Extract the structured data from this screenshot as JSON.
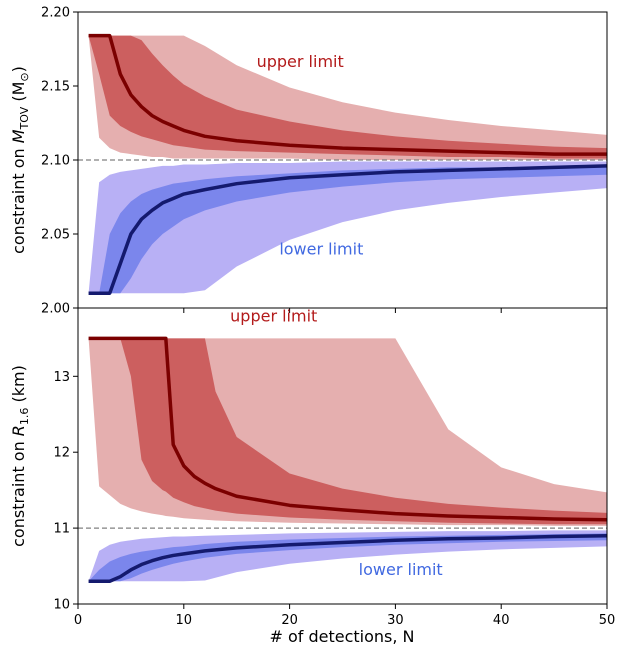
{
  "figure": {
    "xlabel": "#  of  detections,  N",
    "shared_x": true
  },
  "colors": {
    "upper_line": "#7b0000",
    "upper_band_outer": "#e5afaf",
    "upper_band_inner": "#cc5f5f",
    "lower_line": "#141a6e",
    "lower_band_outer": "#b8b0f5",
    "lower_band_inner": "#7b86ec",
    "upper_text": "#b31b1b",
    "lower_text": "#4169e1",
    "reference_line": "#808080"
  },
  "chart_data": [
    {
      "type": "area",
      "panel": "top",
      "ylabel_prefix": "constraint on ",
      "ylabel_symbol": "M",
      "ylabel_sub": "TOV",
      "ylabel_unit": "(M",
      "ylabel_unit_sub": "⊙",
      "ylabel_unit_close": ")",
      "xlim": [
        0,
        50
      ],
      "ylim": [
        2.0,
        2.2
      ],
      "xticks": [
        0,
        10,
        20,
        30,
        40,
        50
      ],
      "xticklabels": [
        "0",
        "10",
        "20",
        "30",
        "40",
        "50"
      ],
      "yticks": [
        2.0,
        2.05,
        2.1,
        2.15,
        2.2
      ],
      "yticklabels": [
        "2.00",
        "2.05",
        "2.10",
        "2.15",
        "2.20"
      ],
      "reference_y": 2.1,
      "annotations": [
        {
          "text": "upper  limit",
          "x": 21,
          "y": 2.163,
          "color": "upper_text"
        },
        {
          "text": "lower  limit",
          "x": 23,
          "y": 2.036,
          "color": "lower_text"
        }
      ],
      "series": [
        {
          "name": "upper limit",
          "color": "upper_line",
          "x": [
            1,
            2,
            3,
            4,
            5,
            6,
            7,
            8,
            9,
            10,
            12,
            15,
            20,
            25,
            30,
            35,
            40,
            45,
            50
          ],
          "median": [
            2.184,
            2.184,
            2.184,
            2.158,
            2.144,
            2.136,
            2.13,
            2.126,
            2.123,
            2.12,
            2.116,
            2.113,
            2.11,
            2.108,
            2.107,
            2.106,
            2.105,
            2.104,
            2.104
          ],
          "inner_lo": [
            2.184,
            2.158,
            2.13,
            2.123,
            2.119,
            2.116,
            2.114,
            2.112,
            2.11,
            2.109,
            2.107,
            2.106,
            2.105,
            2.104,
            2.103,
            2.102,
            2.102,
            2.101,
            2.101
          ],
          "inner_hi": [
            2.184,
            2.184,
            2.184,
            2.184,
            2.184,
            2.181,
            2.172,
            2.164,
            2.157,
            2.151,
            2.143,
            2.134,
            2.126,
            2.12,
            2.116,
            2.113,
            2.111,
            2.109,
            2.108
          ],
          "outer_lo": [
            2.184,
            2.115,
            2.108,
            2.105,
            2.104,
            2.103,
            2.102,
            2.102,
            2.101,
            2.101,
            2.101,
            2.101,
            2.101,
            2.1,
            2.1,
            2.1,
            2.1,
            2.1,
            2.1
          ],
          "outer_hi": [
            2.184,
            2.184,
            2.184,
            2.184,
            2.184,
            2.184,
            2.184,
            2.184,
            2.184,
            2.184,
            2.177,
            2.164,
            2.149,
            2.139,
            2.132,
            2.127,
            2.123,
            2.12,
            2.117
          ]
        },
        {
          "name": "lower limit",
          "color": "lower_line",
          "x": [
            1,
            2,
            3,
            4,
            5,
            6,
            7,
            8,
            9,
            10,
            12,
            15,
            20,
            25,
            30,
            35,
            40,
            45,
            50
          ],
          "median": [
            2.01,
            2.01,
            2.01,
            2.03,
            2.05,
            2.06,
            2.066,
            2.071,
            2.074,
            2.077,
            2.08,
            2.084,
            2.088,
            2.09,
            2.092,
            2.093,
            2.094,
            2.095,
            2.096
          ],
          "inner_lo": [
            2.01,
            2.01,
            2.01,
            2.01,
            2.02,
            2.033,
            2.043,
            2.05,
            2.055,
            2.06,
            2.066,
            2.072,
            2.078,
            2.082,
            2.085,
            2.087,
            2.088,
            2.089,
            2.09
          ],
          "inner_hi": [
            2.01,
            2.01,
            2.05,
            2.064,
            2.072,
            2.077,
            2.08,
            2.082,
            2.084,
            2.085,
            2.087,
            2.089,
            2.091,
            2.093,
            2.094,
            2.095,
            2.095,
            2.096,
            2.096
          ],
          "outer_lo": [
            2.01,
            2.01,
            2.01,
            2.01,
            2.01,
            2.01,
            2.01,
            2.01,
            2.01,
            2.01,
            2.012,
            2.028,
            2.046,
            2.058,
            2.066,
            2.071,
            2.075,
            2.078,
            2.081
          ],
          "outer_hi": [
            2.01,
            2.085,
            2.09,
            2.092,
            2.093,
            2.094,
            2.095,
            2.096,
            2.096,
            2.097,
            2.097,
            2.098,
            2.098,
            2.099,
            2.099,
            2.099,
            2.099,
            2.099,
            2.099
          ]
        }
      ]
    },
    {
      "type": "area",
      "panel": "bottom",
      "ylabel_prefix": "constraint on ",
      "ylabel_symbol": "R",
      "ylabel_sub": "1.6",
      "ylabel_unit": "(km)",
      "ylabel_unit_sub": "",
      "ylabel_unit_close": "",
      "xlim": [
        0,
        50
      ],
      "ylim": [
        10,
        13.9
      ],
      "xticks": [
        0,
        10,
        20,
        30,
        40,
        50
      ],
      "xticklabels": [
        "0",
        "10",
        "20",
        "30",
        "40",
        "50"
      ],
      "yticks": [
        10,
        11,
        12,
        13
      ],
      "yticklabels": [
        "10",
        "11",
        "12",
        "13"
      ],
      "reference_y": 11,
      "annotations": [
        {
          "text": "upper  limit",
          "x": 18.5,
          "y": 13.72,
          "color": "upper_text"
        },
        {
          "text": "lower  limit",
          "x": 30.5,
          "y": 10.38,
          "color": "lower_text"
        }
      ],
      "series": [
        {
          "name": "upper limit",
          "color": "upper_line",
          "x": [
            1,
            2,
            4,
            5,
            6,
            7,
            8,
            8.3,
            9,
            10,
            11,
            12,
            13,
            15,
            20,
            25,
            30,
            35,
            40,
            45,
            50
          ],
          "median": [
            13.5,
            13.5,
            13.5,
            13.5,
            13.5,
            13.5,
            13.5,
            13.5,
            12.1,
            11.82,
            11.68,
            11.59,
            11.52,
            11.42,
            11.3,
            11.24,
            11.19,
            11.16,
            11.14,
            11.12,
            11.11
          ],
          "inner_lo": [
            13.5,
            13.5,
            13.5,
            13.0,
            11.9,
            11.62,
            11.5,
            11.48,
            11.4,
            11.34,
            11.29,
            11.26,
            11.23,
            11.19,
            11.14,
            11.11,
            11.09,
            11.07,
            11.06,
            11.05,
            11.05
          ],
          "inner_hi": [
            13.5,
            13.5,
            13.5,
            13.5,
            13.5,
            13.5,
            13.5,
            13.5,
            13.5,
            13.5,
            13.5,
            13.5,
            12.8,
            12.2,
            11.72,
            11.52,
            11.4,
            11.32,
            11.27,
            11.23,
            11.2
          ],
          "outer_lo": [
            13.5,
            11.55,
            11.32,
            11.26,
            11.22,
            11.19,
            11.17,
            11.16,
            11.15,
            11.13,
            11.12,
            11.11,
            11.1,
            11.09,
            11.07,
            11.06,
            11.05,
            11.04,
            11.04,
            11.03,
            11.03
          ],
          "outer_hi": [
            13.5,
            13.5,
            13.5,
            13.5,
            13.5,
            13.5,
            13.5,
            13.5,
            13.5,
            13.5,
            13.5,
            13.5,
            13.5,
            13.5,
            13.5,
            13.5,
            13.5,
            12.3,
            11.8,
            11.58,
            11.47
          ]
        },
        {
          "name": "lower limit",
          "color": "lower_line",
          "x": [
            1,
            2,
            3,
            4,
            5,
            6,
            7,
            8,
            9,
            10,
            12,
            15,
            20,
            25,
            30,
            35,
            40,
            45,
            50
          ],
          "median": [
            10.3,
            10.3,
            10.3,
            10.36,
            10.45,
            10.52,
            10.57,
            10.61,
            10.64,
            10.66,
            10.7,
            10.74,
            10.78,
            10.81,
            10.84,
            10.86,
            10.87,
            10.89,
            10.9
          ],
          "inner_lo": [
            10.3,
            10.3,
            10.3,
            10.3,
            10.34,
            10.4,
            10.45,
            10.49,
            10.53,
            10.56,
            10.61,
            10.66,
            10.71,
            10.75,
            10.78,
            10.8,
            10.82,
            10.83,
            10.84
          ],
          "inner_hi": [
            10.3,
            10.45,
            10.56,
            10.62,
            10.66,
            10.69,
            10.71,
            10.73,
            10.75,
            10.76,
            10.79,
            10.82,
            10.85,
            10.87,
            10.89,
            10.9,
            10.91,
            10.92,
            10.93
          ],
          "outer_lo": [
            10.3,
            10.3,
            10.3,
            10.3,
            10.3,
            10.3,
            10.3,
            10.3,
            10.3,
            10.3,
            10.31,
            10.42,
            10.53,
            10.6,
            10.65,
            10.69,
            10.72,
            10.74,
            10.76
          ],
          "outer_hi": [
            10.3,
            10.7,
            10.78,
            10.82,
            10.84,
            10.86,
            10.87,
            10.88,
            10.89,
            10.89,
            10.9,
            10.91,
            10.93,
            10.94,
            10.95,
            10.96,
            10.96,
            10.97,
            10.97
          ]
        }
      ]
    }
  ]
}
